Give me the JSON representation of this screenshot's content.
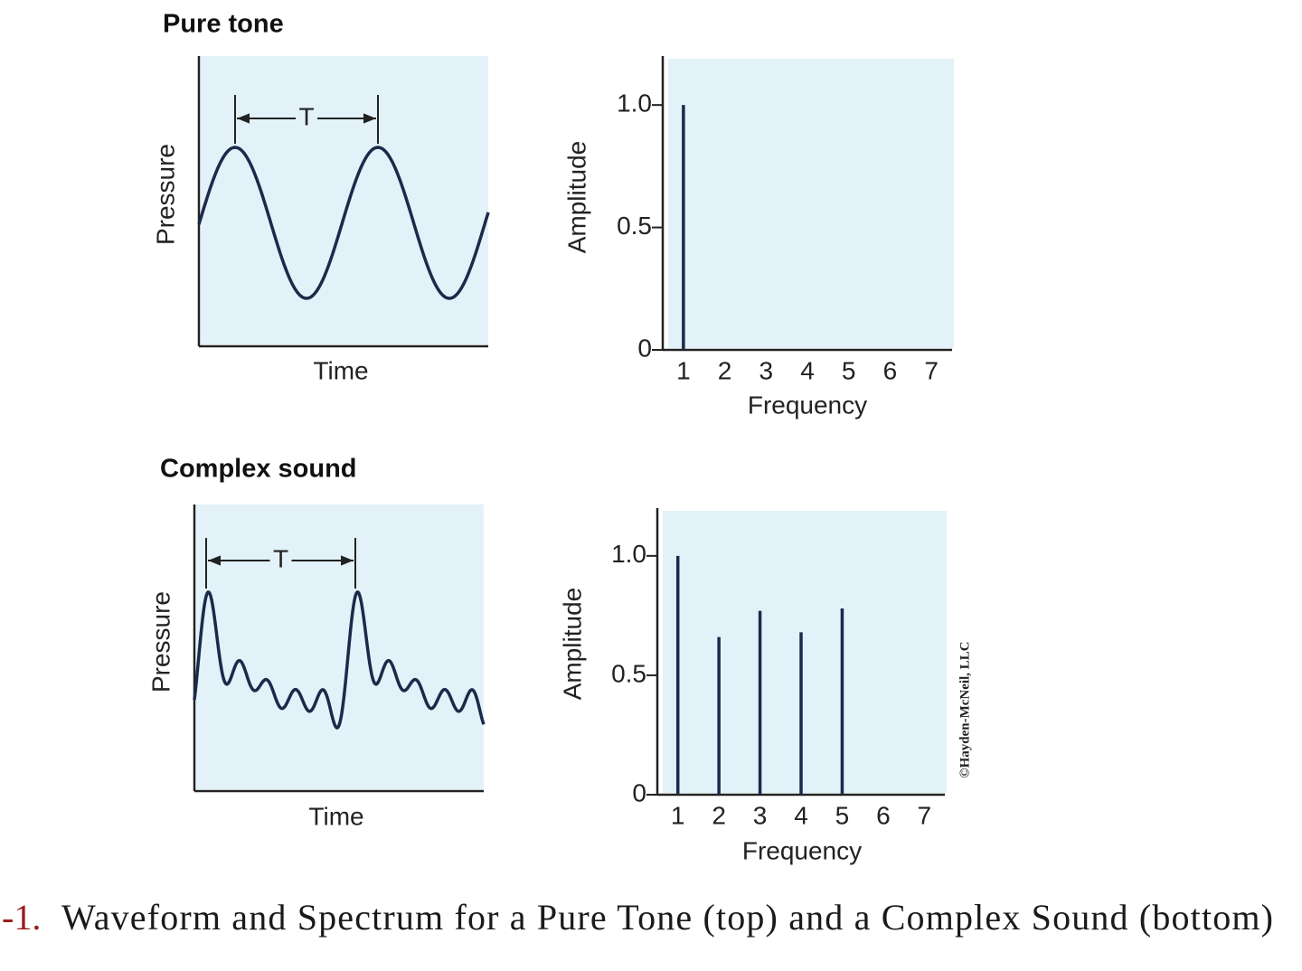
{
  "chart_data": [
    {
      "type": "waveform",
      "title": "Pure tone",
      "x_label": "Time",
      "y_label": "Pressure",
      "annotation": "T"
    },
    {
      "type": "bar",
      "x": [
        1
      ],
      "values": [
        1.0
      ],
      "color": "#1c2a4a",
      "xlim": [
        0.5,
        7.5
      ],
      "xticks": [
        1,
        2,
        3,
        4,
        5,
        6,
        7
      ],
      "ylim": [
        0,
        1.2
      ],
      "yticks": [
        0,
        0.5,
        {
          "value": 1,
          "label": "1.0"
        }
      ],
      "x_label": "Frequency",
      "y_label": "Amplitude"
    },
    {
      "type": "waveform",
      "title": "Complex sound",
      "x_label": "Time",
      "y_label": "Pressure",
      "annotation": "T"
    },
    {
      "type": "bar",
      "x": [
        1,
        2,
        3,
        4,
        5
      ],
      "values": [
        1.0,
        0.66,
        0.77,
        0.68,
        0.78
      ],
      "color": "#1c2a4a",
      "xlim": [
        0.5,
        7.5
      ],
      "xticks": [
        1,
        2,
        3,
        4,
        5,
        6,
        7
      ],
      "ylim": [
        0,
        1.2
      ],
      "yticks": [
        0,
        0.5,
        {
          "value": 1,
          "label": "1.0"
        }
      ],
      "x_label": "Frequency",
      "y_label": "Amplitude"
    }
  ],
  "credit": "©Hayden-McNeil, LLC",
  "caption": {
    "number": "-1.",
    "text": "Waveform and Spectrum for a Pure Tone (top) and a Complex Sound (bottom)"
  }
}
